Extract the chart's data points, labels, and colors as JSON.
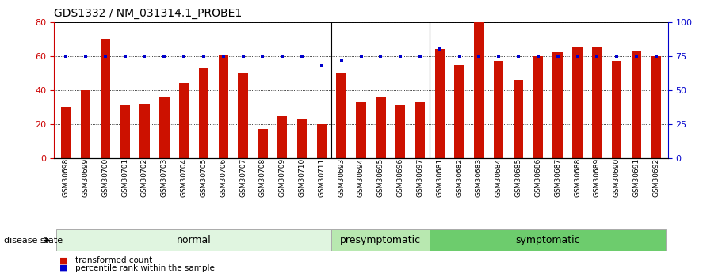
{
  "title": "GDS1332 / NM_031314.1_PROBE1",
  "samples": [
    "GSM30698",
    "GSM30699",
    "GSM30700",
    "GSM30701",
    "GSM30702",
    "GSM30703",
    "GSM30704",
    "GSM30705",
    "GSM30706",
    "GSM30707",
    "GSM30708",
    "GSM30709",
    "GSM30710",
    "GSM30711",
    "GSM30693",
    "GSM30694",
    "GSM30695",
    "GSM30696",
    "GSM30697",
    "GSM30681",
    "GSM30682",
    "GSM30683",
    "GSM30684",
    "GSM30685",
    "GSM30686",
    "GSM30687",
    "GSM30688",
    "GSM30689",
    "GSM30690",
    "GSM30691",
    "GSM30692"
  ],
  "bar_values": [
    30,
    40,
    70,
    31,
    32,
    36,
    44,
    53,
    61,
    50,
    17,
    25,
    23,
    20,
    50,
    33,
    36,
    31,
    33,
    64,
    55,
    80,
    57,
    46,
    60,
    62,
    65,
    65,
    57,
    63,
    60
  ],
  "percentile_values": [
    75,
    75,
    75,
    75,
    75,
    75,
    75,
    75,
    75,
    75,
    75,
    75,
    75,
    68,
    72,
    75,
    75,
    75,
    75,
    80,
    75,
    75,
    75,
    75,
    75,
    75,
    75,
    75,
    75,
    75,
    75
  ],
  "groups": [
    {
      "label": "normal",
      "start": 0,
      "end": 14,
      "color": "#e0f5e0"
    },
    {
      "label": "presymptomatic",
      "start": 14,
      "end": 19,
      "color": "#b8e8b0"
    },
    {
      "label": "symptomatic",
      "start": 19,
      "end": 31,
      "color": "#6dcc6d"
    }
  ],
  "group_boundaries": [
    14,
    19
  ],
  "bar_color": "#cc1100",
  "percentile_color": "#0000cc",
  "ylim_left": [
    0,
    80
  ],
  "ylim_right": [
    0,
    100
  ],
  "yticks_left": [
    0,
    20,
    40,
    60,
    80
  ],
  "yticks_right": [
    0,
    25,
    50,
    75,
    100
  ],
  "ylabel_left_color": "#cc0000",
  "ylabel_right_color": "#0000cc",
  "legend_bar_label": "transformed count",
  "legend_pct_label": "percentile rank within the sample",
  "group_label_prefix": "disease state",
  "title_fontsize": 10,
  "tick_fontsize": 6.5,
  "group_fontsize": 9
}
